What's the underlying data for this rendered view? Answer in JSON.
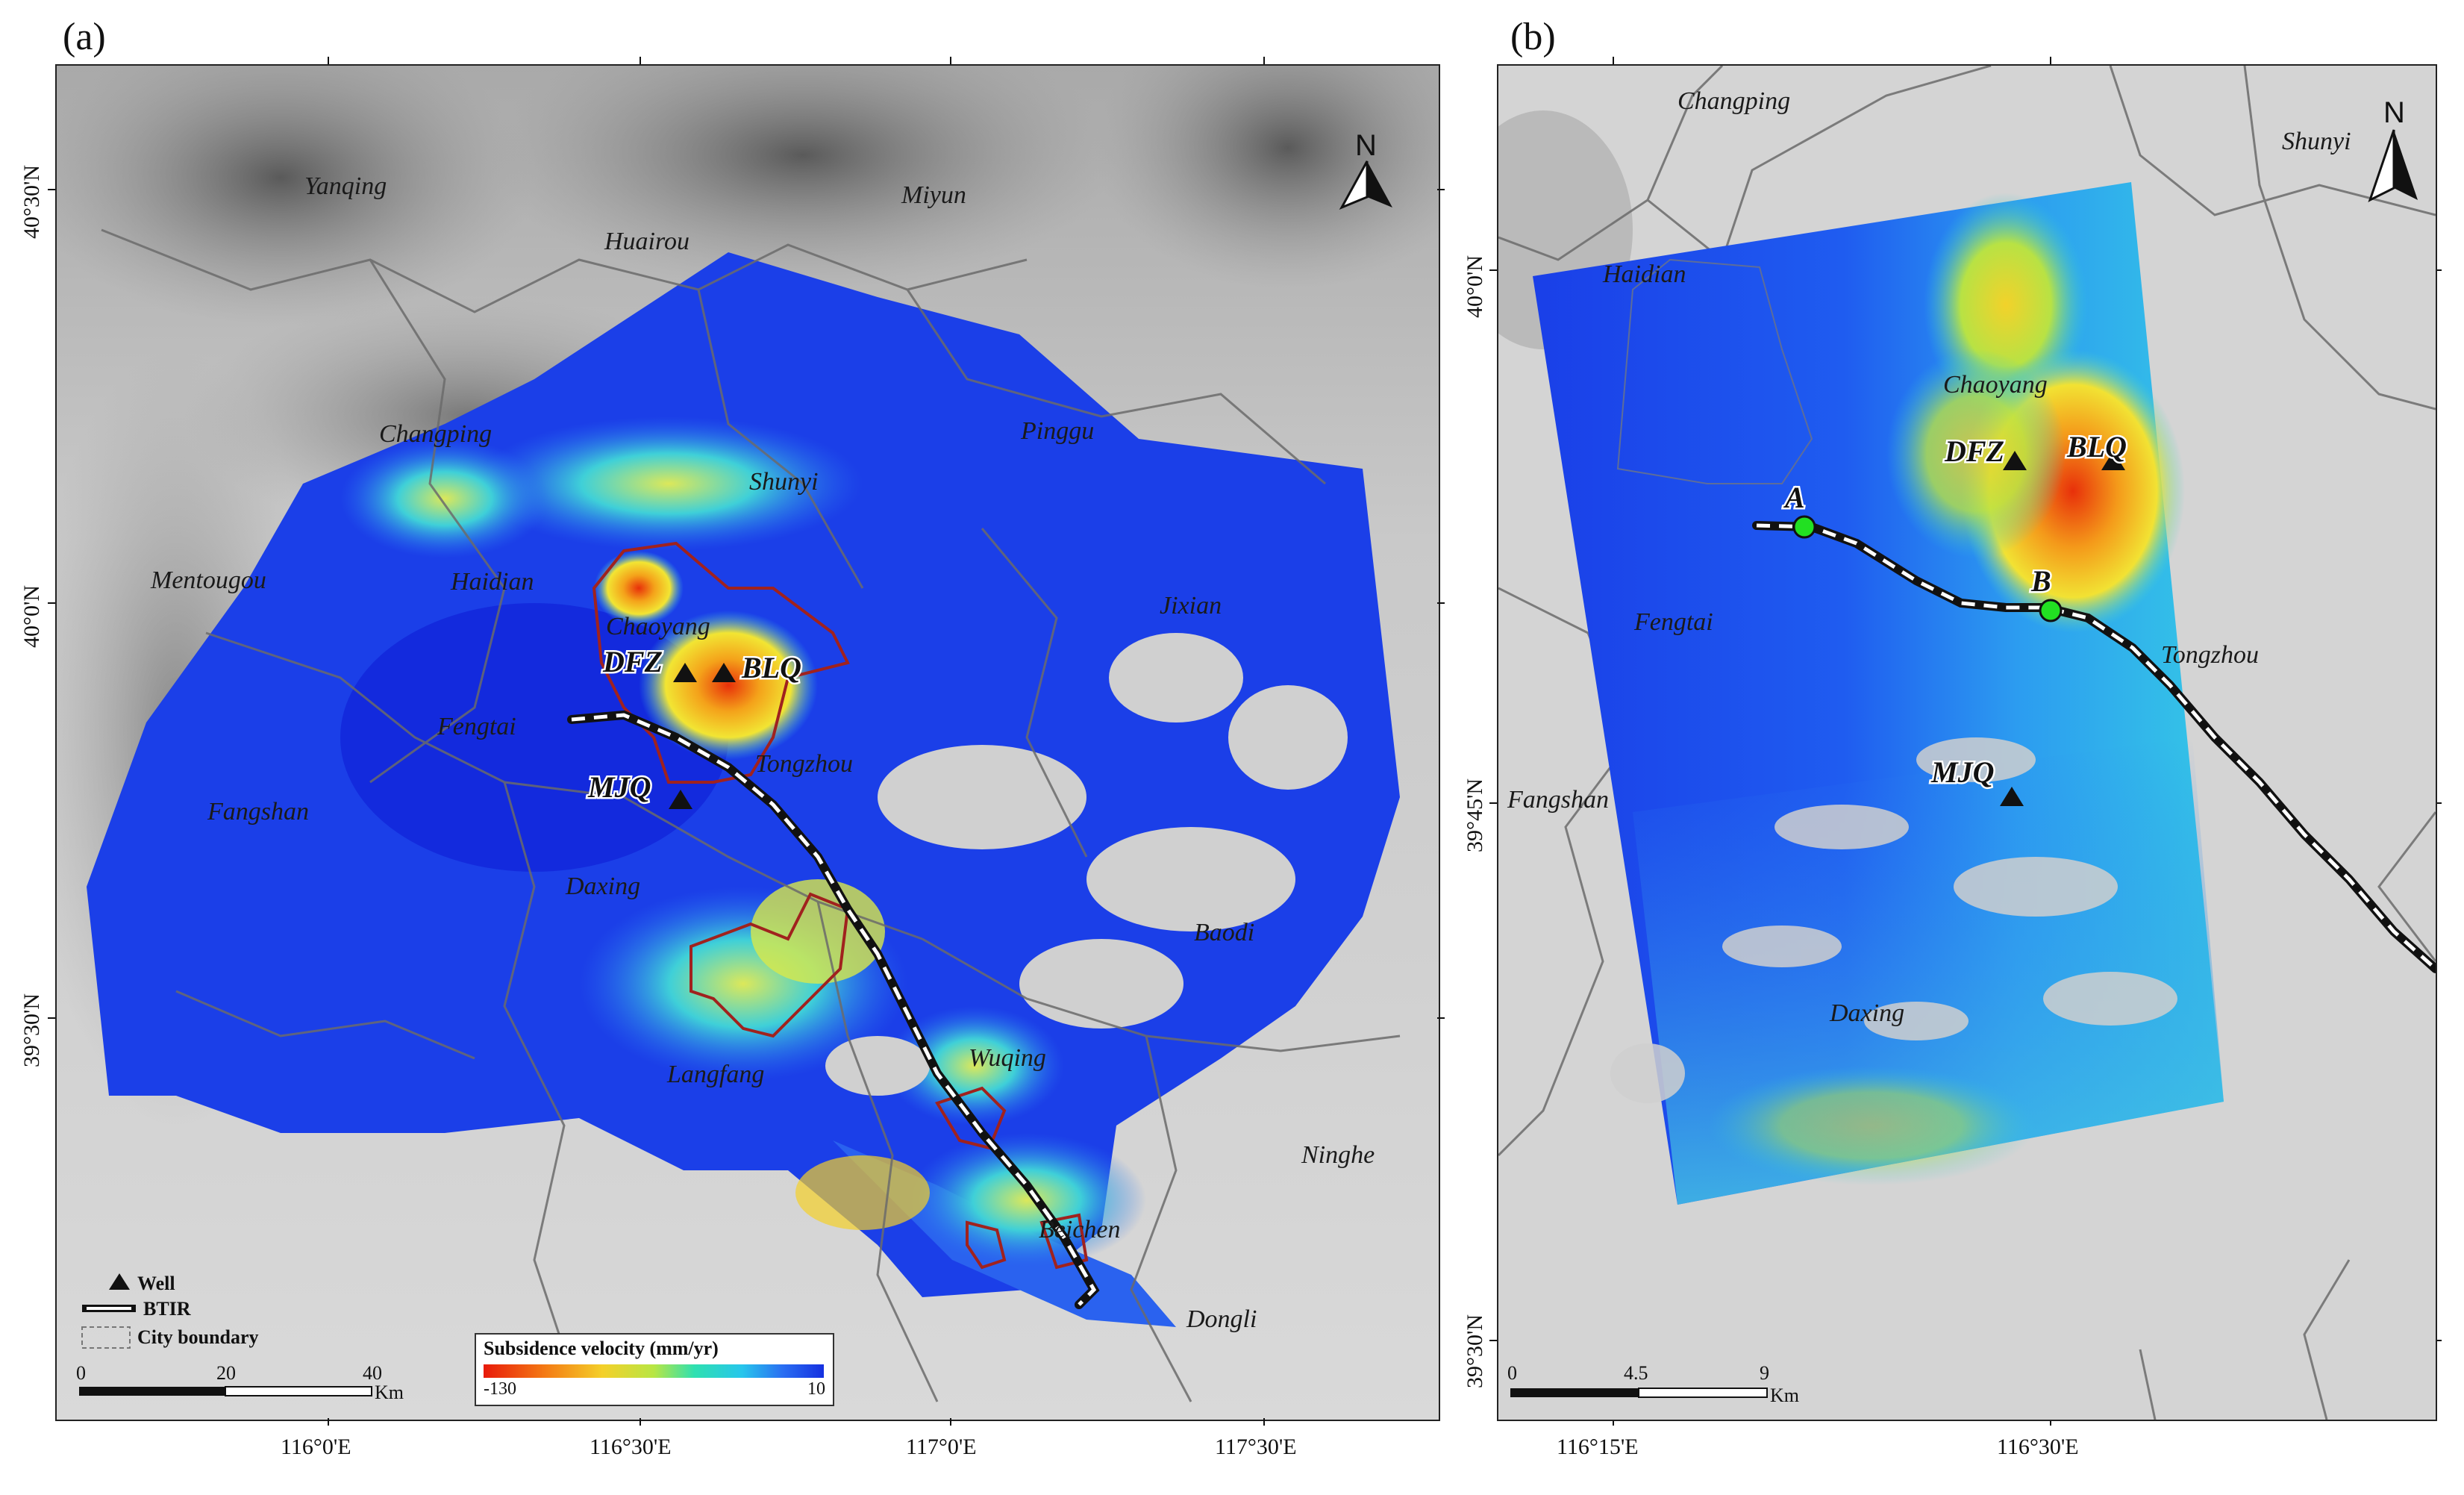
{
  "panel_a": {
    "letter": "(a)",
    "places": [
      "Yanqing",
      "Huairou",
      "Miyun",
      "Changping",
      "Shunyi",
      "Pinggu",
      "Mentougou",
      "Haidian",
      "Chaoyang",
      "Jixian",
      "Fengtai",
      "Tongzhou",
      "Fangshan",
      "Daxing",
      "Baodi",
      "Langfang",
      "Wuqing",
      "Ninghe",
      "Beichen",
      "Dongli"
    ],
    "wells": [
      "DFZ",
      "BLQ",
      "MJQ"
    ],
    "north": "N",
    "lat_ticks": [
      "40°30'N",
      "40°0'N",
      "39°30'N"
    ],
    "lon_ticks": [
      "116°0'E",
      "116°30'E",
      "117°0'E",
      "117°30'E"
    ],
    "legend": {
      "well": "Well",
      "btir": "BTIR",
      "city_boundary": "City boundary"
    },
    "scalebar": {
      "labels": [
        "0",
        "20",
        "40"
      ],
      "unit": "Km"
    },
    "colorbar": {
      "title": "Subsidence velocity (mm/yr)",
      "min_label": "-130",
      "max_label": "10"
    }
  },
  "panel_b": {
    "letter": "(b)",
    "places": [
      "Changping",
      "Shunyi",
      "Haidian",
      "Chaoyang",
      "Fengtai",
      "Tongzhou",
      "Fangshan",
      "Daxing"
    ],
    "wells": [
      "DFZ",
      "BLQ",
      "MJQ"
    ],
    "points": [
      "A",
      "B"
    ],
    "north": "N",
    "lat_ticks": [
      "40°0'N",
      "39°45'N",
      "39°30'N"
    ],
    "lon_ticks": [
      "116°15'E",
      "116°30'E"
    ],
    "scalebar": {
      "labels": [
        "0",
        "4.5",
        "9"
      ],
      "unit": "Km"
    }
  },
  "colors": {
    "background_gray": "#d6d6d6",
    "subsidence_low": "#1530e0",
    "subsidence_high": "#e81a0a",
    "zone_outline": "#a0221e",
    "boundary": "#6b6b6b"
  }
}
